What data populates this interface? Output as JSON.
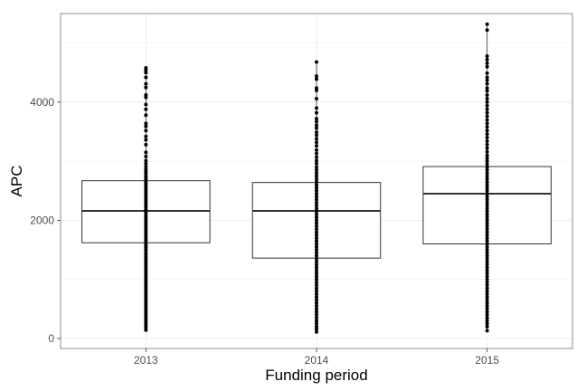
{
  "chart_data": {
    "type": "boxplot",
    "xlabel": "Funding period",
    "ylabel": "APC",
    "categories": [
      "2013",
      "2014",
      "2015"
    ],
    "ylim": [
      -170,
      5500
    ],
    "y_ticks": [
      0,
      2000,
      4000
    ],
    "grid": true,
    "legend": "none",
    "colors": {
      "panel_border": "#8c8c8c",
      "grid": "#ebebeb",
      "box": "#333333",
      "points": "#000000",
      "tick_text": "#4d4d4d"
    },
    "boxes": [
      {
        "category": "2013",
        "q1": 1620,
        "median": 2160,
        "q3": 2670,
        "min": 140,
        "max": 4580
      },
      {
        "category": "2014",
        "q1": 1360,
        "median": 2160,
        "q3": 2640,
        "min": 110,
        "max": 4680
      },
      {
        "category": "2015",
        "q1": 1600,
        "median": 2450,
        "q3": 2910,
        "min": 130,
        "max": 5320
      }
    ],
    "points": [
      {
        "category": "2013",
        "values": [
          4580,
          4540,
          4500,
          4420,
          4310,
          4250,
          4120,
          4080,
          3960,
          3880,
          3780,
          3640,
          3590,
          3520,
          3420,
          3360,
          3280,
          3150,
          3080,
          3010,
          2960,
          2910,
          2860,
          2820,
          2780,
          2740,
          2700,
          2660,
          2620,
          2580,
          2540,
          2500,
          2460,
          2420,
          2380,
          2340,
          2300,
          2260,
          2220,
          2180,
          2140,
          2100,
          2060,
          2020,
          1980,
          1940,
          1900,
          1860,
          1820,
          1780,
          1740,
          1700,
          1660,
          1620,
          1580,
          1540,
          1500,
          1460,
          1420,
          1380,
          1340,
          1300,
          1260,
          1220,
          1180,
          1140,
          1100,
          1060,
          1020,
          980,
          940,
          900,
          860,
          820,
          780,
          740,
          700,
          660,
          620,
          580,
          540,
          500,
          460,
          420,
          380,
          340,
          300,
          260,
          220,
          180,
          140
        ]
      },
      {
        "category": "2014",
        "values": [
          4680,
          4440,
          4390,
          4240,
          4200,
          4060,
          3900,
          3820,
          3720,
          3670,
          3610,
          3560,
          3490,
          3440,
          3380,
          3320,
          3260,
          3190,
          3130,
          3070,
          3010,
          2960,
          2900,
          2850,
          2800,
          2750,
          2700,
          2650,
          2600,
          2550,
          2500,
          2450,
          2400,
          2350,
          2300,
          2250,
          2200,
          2150,
          2100,
          2050,
          2000,
          1950,
          1900,
          1850,
          1800,
          1750,
          1700,
          1650,
          1600,
          1550,
          1500,
          1450,
          1400,
          1350,
          1300,
          1250,
          1200,
          1150,
          1100,
          1050,
          1000,
          950,
          900,
          850,
          800,
          750,
          700,
          650,
          600,
          550,
          500,
          450,
          400,
          350,
          300,
          250,
          200,
          160,
          110
        ]
      },
      {
        "category": "2015",
        "values": [
          5320,
          5220,
          4780,
          4720,
          4660,
          4600,
          4490,
          4420,
          4370,
          4310,
          4240,
          4190,
          4120,
          4060,
          4000,
          3940,
          3880,
          3820,
          3760,
          3700,
          3640,
          3580,
          3520,
          3460,
          3400,
          3340,
          3280,
          3220,
          3160,
          3100,
          3050,
          3000,
          2950,
          2900,
          2850,
          2800,
          2750,
          2700,
          2650,
          2600,
          2550,
          2500,
          2450,
          2400,
          2350,
          2300,
          2250,
          2200,
          2150,
          2100,
          2050,
          2000,
          1950,
          1900,
          1850,
          1800,
          1750,
          1700,
          1650,
          1600,
          1550,
          1500,
          1450,
          1400,
          1350,
          1300,
          1250,
          1200,
          1150,
          1100,
          1050,
          1000,
          950,
          900,
          850,
          800,
          750,
          700,
          650,
          600,
          550,
          500,
          450,
          400,
          350,
          300,
          250,
          200,
          130
        ]
      }
    ]
  }
}
